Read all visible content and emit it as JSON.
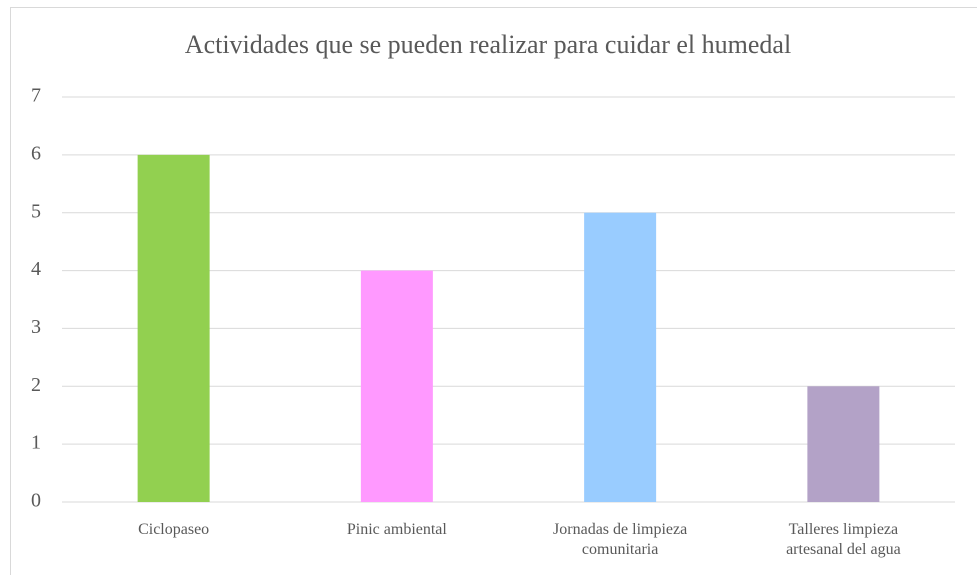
{
  "chart_data": {
    "type": "bar",
    "title": "Actividades que se pueden realizar para cuidar el humedal",
    "categories": [
      "Ciclopaseo",
      "Pinic ambiental",
      "Jornadas de limpieza comunitaria",
      "Talleres limpieza artesanal del agua"
    ],
    "values": [
      6,
      4,
      5,
      2
    ],
    "colors": [
      "#92d050",
      "#ff99ff",
      "#99ccff",
      "#b3a2c7"
    ],
    "ylim": [
      0,
      7
    ],
    "yticks": [
      0,
      1,
      2,
      3,
      4,
      5,
      6,
      7
    ],
    "grid": true
  }
}
